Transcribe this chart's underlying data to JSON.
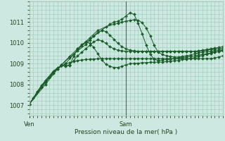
{
  "bg_color": "#cce8e0",
  "grid_color": "#99ccbb",
  "line_color": "#1a5c2a",
  "xlabel": "Pression niveau de la mer( hPa )",
  "ylim": [
    1006.5,
    1012.0
  ],
  "yticks": [
    1007,
    1008,
    1009,
    1010,
    1011
  ],
  "ven_x": 0.0,
  "sam_x": 24.0,
  "xlim": [
    0,
    48
  ],
  "series": [
    [
      0,
      1007.05,
      1,
      1007.35,
      2,
      1007.65,
      3,
      1007.95,
      4,
      1008.15,
      5,
      1008.35,
      6,
      1008.55,
      7,
      1008.75,
      8,
      1008.9,
      9,
      1009.0,
      10,
      1009.05,
      11,
      1009.1,
      12,
      1009.15,
      13,
      1009.18,
      14,
      1009.2,
      15,
      1009.22,
      16,
      1009.23,
      17,
      1009.24,
      18,
      1009.25,
      19,
      1009.25,
      20,
      1009.25,
      21,
      1009.25,
      22,
      1009.25,
      23,
      1009.25,
      24,
      1009.25,
      25,
      1009.25,
      26,
      1009.25,
      27,
      1009.25,
      28,
      1009.25,
      29,
      1009.25,
      30,
      1009.25,
      31,
      1009.25,
      32,
      1009.25,
      33,
      1009.25,
      34,
      1009.25,
      35,
      1009.25,
      36,
      1009.25,
      37,
      1009.25,
      38,
      1009.25,
      39,
      1009.25,
      40,
      1009.25,
      41,
      1009.25,
      42,
      1009.25,
      43,
      1009.25,
      44,
      1009.25,
      45,
      1009.25,
      46,
      1009.27,
      47,
      1009.32,
      48,
      1009.38
    ],
    [
      0,
      1007.05,
      2,
      1007.65,
      4,
      1008.2,
      6,
      1008.65,
      7,
      1008.8,
      8,
      1008.9,
      9,
      1008.92,
      10,
      1008.95,
      11,
      1009.15,
      12,
      1009.38,
      13,
      1009.55,
      14,
      1009.72,
      15,
      1009.88,
      16,
      1010.05,
      17,
      1010.15,
      18,
      1010.1,
      19,
      1009.98,
      20,
      1009.82,
      21,
      1009.72,
      22,
      1009.65,
      23,
      1009.62,
      24,
      1009.6,
      25,
      1009.6,
      26,
      1009.6,
      27,
      1009.6,
      28,
      1009.6,
      29,
      1009.6,
      30,
      1009.6,
      31,
      1009.6,
      32,
      1009.6,
      33,
      1009.6,
      34,
      1009.6,
      35,
      1009.6,
      36,
      1009.6,
      37,
      1009.6,
      38,
      1009.6,
      39,
      1009.6,
      40,
      1009.6,
      41,
      1009.6,
      42,
      1009.6,
      43,
      1009.62,
      44,
      1009.65,
      45,
      1009.68,
      46,
      1009.7,
      47,
      1009.72,
      48,
      1009.75
    ],
    [
      0,
      1007.05,
      3,
      1007.85,
      6,
      1008.6,
      8,
      1008.95,
      10,
      1009.3,
      12,
      1009.62,
      14,
      1009.92,
      15,
      1010.12,
      16,
      1010.35,
      17,
      1010.5,
      18,
      1010.6,
      19,
      1010.55,
      20,
      1010.38,
      21,
      1010.18,
      22,
      1009.98,
      23,
      1009.82,
      24,
      1009.72,
      25,
      1009.65,
      26,
      1009.62,
      27,
      1009.6,
      28,
      1009.6,
      29,
      1009.6,
      30,
      1009.6,
      31,
      1009.6,
      32,
      1009.6,
      33,
      1009.6,
      34,
      1009.6,
      35,
      1009.6,
      36,
      1009.6,
      37,
      1009.6,
      38,
      1009.6,
      39,
      1009.6,
      40,
      1009.6,
      41,
      1009.6,
      42,
      1009.62,
      43,
      1009.65,
      44,
      1009.68,
      45,
      1009.72,
      46,
      1009.75,
      47,
      1009.78,
      48,
      1009.82
    ],
    [
      0,
      1007.05,
      4,
      1008.0,
      7,
      1008.75,
      9,
      1009.0,
      11,
      1009.45,
      13,
      1009.85,
      15,
      1010.25,
      17,
      1010.6,
      19,
      1010.78,
      21,
      1010.9,
      22,
      1010.95,
      23,
      1011.0,
      24,
      1011.05,
      25,
      1011.08,
      26,
      1011.12,
      27,
      1011.1,
      28,
      1010.98,
      29,
      1010.72,
      30,
      1010.35,
      31,
      1009.88,
      32,
      1009.55,
      33,
      1009.45,
      34,
      1009.38,
      35,
      1009.35,
      36,
      1009.32,
      37,
      1009.32,
      38,
      1009.35,
      39,
      1009.38,
      40,
      1009.42,
      41,
      1009.48,
      42,
      1009.52,
      43,
      1009.55,
      44,
      1009.58,
      45,
      1009.6,
      46,
      1009.62,
      47,
      1009.65,
      48,
      1009.68
    ],
    [
      0,
      1007.05,
      4,
      1008.1,
      8,
      1008.95,
      10,
      1009.35,
      12,
      1009.72,
      14,
      1010.02,
      16,
      1010.32,
      18,
      1010.62,
      20,
      1010.9,
      21,
      1011.0,
      22,
      1011.05,
      23,
      1011.15,
      24,
      1011.3,
      25,
      1011.45,
      26,
      1011.38,
      27,
      1010.95,
      28,
      1010.45,
      29,
      1009.9,
      30,
      1009.45,
      31,
      1009.22,
      32,
      1009.15,
      33,
      1009.18,
      34,
      1009.2,
      35,
      1009.22,
      36,
      1009.25,
      37,
      1009.27,
      38,
      1009.3,
      39,
      1009.32,
      40,
      1009.35,
      41,
      1009.38,
      42,
      1009.42,
      43,
      1009.45,
      44,
      1009.48,
      45,
      1009.52,
      46,
      1009.55,
      47,
      1009.58,
      48,
      1009.62
    ],
    [
      0,
      1007.05,
      3,
      1007.88,
      6,
      1008.62,
      8,
      1008.92,
      9,
      1008.88,
      10,
      1008.92,
      11,
      1009.35,
      12,
      1009.72,
      13,
      1009.92,
      14,
      1010.05,
      15,
      1009.98,
      16,
      1009.78,
      17,
      1009.48,
      18,
      1009.18,
      19,
      1008.98,
      20,
      1008.88,
      21,
      1008.82,
      22,
      1008.82,
      23,
      1008.88,
      24,
      1008.95,
      25,
      1009.0,
      26,
      1009.02,
      27,
      1009.02,
      28,
      1009.05,
      29,
      1009.05,
      30,
      1009.07,
      31,
      1009.07,
      32,
      1009.08,
      33,
      1009.08,
      34,
      1009.1,
      35,
      1009.12,
      36,
      1009.14,
      37,
      1009.16,
      38,
      1009.2,
      39,
      1009.22,
      40,
      1009.25,
      41,
      1009.3,
      42,
      1009.35,
      43,
      1009.4,
      44,
      1009.45,
      45,
      1009.5,
      46,
      1009.55,
      47,
      1009.6,
      48,
      1009.65
    ]
  ]
}
